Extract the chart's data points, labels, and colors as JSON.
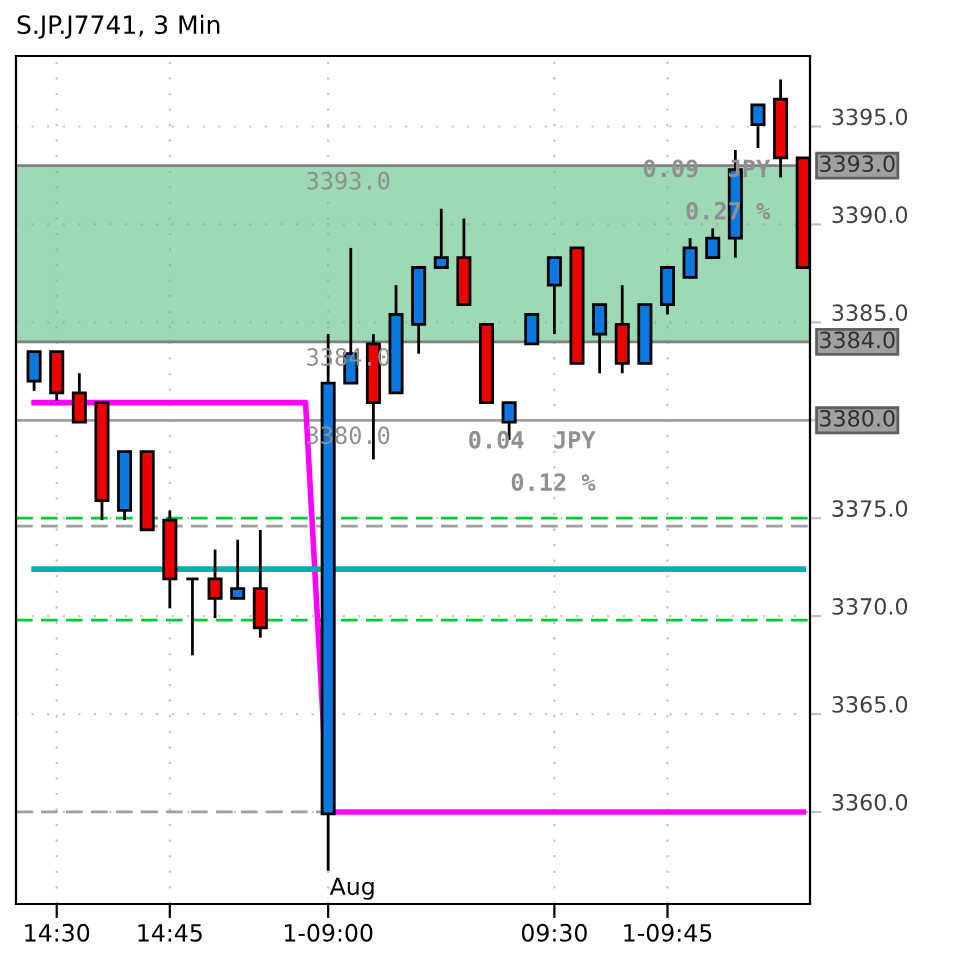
{
  "chart_data": {
    "type": "candlestick",
    "title": "S.JP.J7741, 3 Min",
    "categories": [
      null,
      "14:30",
      null,
      null,
      null,
      null,
      "14:45",
      null,
      null,
      null,
      null,
      null,
      null,
      "1-09:00",
      null,
      null,
      null,
      null,
      null,
      null,
      null,
      null,
      null,
      "09:30",
      null,
      null,
      null,
      null,
      "1-09:45",
      null,
      null,
      null,
      null,
      null,
      null
    ],
    "ohlc": [
      [
        3382.0,
        3383.5,
        3381.5,
        3383.5
      ],
      [
        3383.5,
        3383.5,
        3381.0,
        3381.4
      ],
      [
        3381.4,
        3382.4,
        3379.9,
        3379.9
      ],
      [
        3380.9,
        3380.9,
        3374.9,
        3375.9
      ],
      [
        3375.4,
        3378.4,
        3374.9,
        3378.4
      ],
      [
        3378.4,
        3378.4,
        3374.4,
        3374.4
      ],
      [
        3374.9,
        3375.4,
        3370.4,
        3371.9
      ],
      [
        3371.9,
        3371.9,
        3368.0,
        3371.9
      ],
      [
        3371.9,
        3373.4,
        3369.9,
        3370.9
      ],
      [
        3370.9,
        3373.9,
        3370.9,
        3371.4
      ],
      [
        3371.4,
        3374.4,
        3368.9,
        3369.4
      ],
      null,
      null,
      [
        3359.9,
        3384.4,
        3357.0,
        3381.9
      ],
      [
        3381.9,
        3388.8,
        3381.9,
        3383.4
      ],
      [
        3383.9,
        3384.4,
        3378.0,
        3380.9
      ],
      [
        3381.4,
        3386.9,
        3381.4,
        3385.4
      ],
      [
        3384.9,
        3387.8,
        3383.4,
        3387.8
      ],
      [
        3387.8,
        3390.8,
        3387.8,
        3388.3
      ],
      [
        3388.3,
        3390.3,
        3385.9,
        3385.9
      ],
      [
        3384.9,
        3384.9,
        3380.9,
        3380.9
      ],
      [
        3379.9,
        3380.9,
        3379.0,
        3380.9
      ],
      [
        3383.9,
        3385.4,
        3383.9,
        3385.4
      ],
      [
        3386.9,
        3388.3,
        3384.4,
        3388.3
      ],
      [
        3388.8,
        3388.8,
        3382.9,
        3382.9
      ],
      [
        3384.4,
        3385.9,
        3382.4,
        3385.9
      ],
      [
        3384.9,
        3386.9,
        3382.4,
        3382.9
      ],
      [
        3382.9,
        3385.9,
        3382.9,
        3385.9
      ],
      [
        3385.9,
        3387.8,
        3385.4,
        3387.8
      ],
      [
        3387.3,
        3389.3,
        3387.3,
        3388.8
      ],
      [
        3388.3,
        3389.8,
        3388.3,
        3389.3
      ],
      [
        3389.3,
        3393.8,
        3388.3,
        3392.8
      ],
      [
        3395.1,
        3396.1,
        3393.9,
        3396.1
      ],
      [
        3396.4,
        3397.4,
        3392.4,
        3393.4
      ],
      [
        3393.4,
        3393.4,
        3387.8,
        3387.8
      ]
    ],
    "colors": [
      "#0a78e0",
      "#ee0000",
      "#ee0000",
      "#ee0000",
      "#0a78e0",
      "#ee0000",
      "#ee0000",
      "#000000",
      "#ee0000",
      "#0a78e0",
      "#ee0000",
      null,
      null,
      "#0a78e0",
      "#0a78e0",
      "#ee0000",
      "#0a78e0",
      "#0a78e0",
      "#0a78e0",
      "#ee0000",
      "#ee0000",
      "#0a78e0",
      "#0a78e0",
      "#0a78e0",
      "#ee0000",
      "#0a78e0",
      "#ee0000",
      "#0a78e0",
      "#0a78e0",
      "#0a78e0",
      "#0a78e0",
      "#0a78e0",
      "#0a78e0",
      "#ee0000",
      "#ee0000"
    ],
    "series": [
      {
        "type": "line",
        "color": "#ff00ff",
        "values": [
          3380.9,
          3380.9,
          3380.9,
          3380.9,
          3380.9,
          3380.9,
          3380.9,
          3380.9,
          3380.9,
          3380.9,
          3380.9,
          3380.9,
          3380.9,
          3360.0,
          3360.0,
          3360.0,
          3360.0,
          3360.0,
          3360.0,
          3360.0,
          3360.0,
          3360.0,
          3360.0,
          3360.0,
          3360.0,
          3360.0,
          3360.0,
          3360.0,
          3360.0,
          3360.0,
          3360.0,
          3360.0,
          3360.0,
          3360.0,
          3360.0
        ]
      },
      {
        "type": "line",
        "color": "#00b0b0",
        "values": [
          3372.4,
          3372.4,
          3372.4,
          3372.4,
          3372.4,
          3372.4,
          3372.4,
          3372.4,
          3372.4,
          3372.4,
          3372.4,
          3372.4,
          3372.4,
          3372.4,
          3372.4,
          3372.4,
          3372.4,
          3372.4,
          3372.4,
          3372.4,
          3372.4,
          3372.4,
          3372.4,
          3372.4,
          3372.4,
          3372.4,
          3372.4,
          3372.4,
          3372.4,
          3372.4,
          3372.4,
          3372.4,
          3372.4,
          3372.4,
          3372.4
        ]
      }
    ],
    "ref_lines": [
      {
        "axis": "y",
        "value": 3375.0,
        "color": "#00cc33",
        "line_style": "dashed"
      },
      {
        "axis": "y",
        "value": 3369.8,
        "color": "#00cc33",
        "line_style": "dashed"
      },
      {
        "axis": "y",
        "value": 3374.6,
        "color": "#a0a0a0",
        "line_style": "dashed"
      },
      {
        "axis": "y",
        "value": 3360.0,
        "color": "#a0a0a0",
        "line_style": "dashed"
      },
      {
        "axis": "y",
        "value": 3380.0,
        "label": "3380.0",
        "color": "#a0a0a0",
        "line_style": "solid"
      },
      {
        "axis": "y",
        "value": 3384.0,
        "label": "3384.0",
        "color": "#808080",
        "line_style": "solid"
      },
      {
        "axis": "y",
        "value": 3393.0,
        "label": "3393.0",
        "color": "#808080",
        "line_style": "solid"
      }
    ],
    "bands": [
      {
        "axis": "y",
        "from": 3384.0,
        "to": 3393.0,
        "color": "#4dba78"
      }
    ],
    "annotations": [
      "Aug",
      "0.09  JPY",
      "0.27 %",
      "0.04  JPY",
      "0.12 %"
    ],
    "ylim": [
      3355.3,
      3398.6
    ],
    "yticks": [
      {
        "value": 3360,
        "label": "3360.0"
      },
      {
        "value": 3365,
        "label": "3365.0"
      },
      {
        "value": 3370,
        "label": "3370.0"
      },
      {
        "value": 3375,
        "label": "3375.0"
      },
      {
        "value": 3380,
        "label": null
      },
      {
        "value": 3385,
        "label": "3385.0"
      },
      {
        "value": 3390,
        "label": "3390.0"
      },
      {
        "value": 3395,
        "label": "3395.0"
      }
    ],
    "grid": true
  }
}
